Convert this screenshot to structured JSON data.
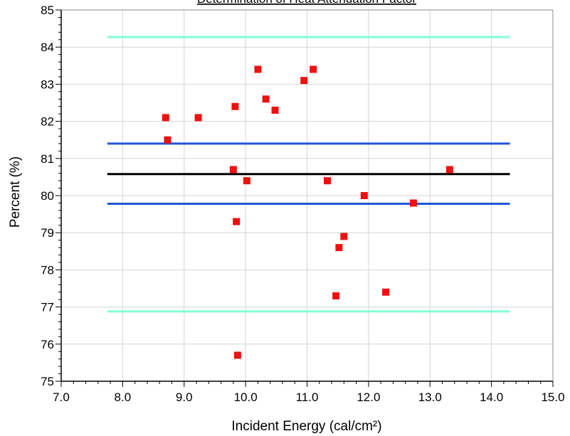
{
  "chart_data": {
    "type": "scatter",
    "title": "Determination of Heat Attenuation Factor",
    "xlabel": "Incident Energy (cal/cm²)",
    "ylabel": "Percent (%)",
    "xlim": [
      7.0,
      15.0
    ],
    "ylim": [
      75,
      85
    ],
    "grid": true,
    "x_ticks": [
      "7.0",
      "8.0",
      "9.0",
      "10.0",
      "11.0",
      "12.0",
      "13.0",
      "14.0",
      "15.0"
    ],
    "y_ticks": [
      "75",
      "76",
      "77",
      "78",
      "79",
      "80",
      "81",
      "82",
      "83",
      "84",
      "85"
    ],
    "reference_lines": [
      {
        "y": 84.27,
        "x_range": [
          7.75,
          14.3
        ],
        "color": "#7fffd4"
      },
      {
        "y": 81.4,
        "x_range": [
          7.75,
          14.3
        ],
        "color": "#1f56d6"
      },
      {
        "y": 80.58,
        "x_range": [
          7.75,
          14.3
        ],
        "color": "#000000"
      },
      {
        "y": 79.78,
        "x_range": [
          7.75,
          14.3
        ],
        "color": "#1f56d6"
      },
      {
        "y": 76.88,
        "x_range": [
          7.75,
          14.3
        ],
        "color": "#7fffd4"
      }
    ],
    "series": [
      {
        "color": "#ee1111",
        "points": [
          {
            "x": 8.7,
            "y": 82.1
          },
          {
            "x": 8.73,
            "y": 81.5
          },
          {
            "x": 9.23,
            "y": 82.1
          },
          {
            "x": 9.8,
            "y": 80.7
          },
          {
            "x": 9.83,
            "y": 82.4
          },
          {
            "x": 9.85,
            "y": 79.3
          },
          {
            "x": 9.87,
            "y": 75.7
          },
          {
            "x": 10.02,
            "y": 80.4
          },
          {
            "x": 10.2,
            "y": 83.4
          },
          {
            "x": 10.33,
            "y": 82.6
          },
          {
            "x": 10.48,
            "y": 82.3
          },
          {
            "x": 10.95,
            "y": 83.1
          },
          {
            "x": 11.1,
            "y": 83.4
          },
          {
            "x": 11.33,
            "y": 80.4
          },
          {
            "x": 11.47,
            "y": 77.3
          },
          {
            "x": 11.52,
            "y": 78.6
          },
          {
            "x": 11.6,
            "y": 78.9
          },
          {
            "x": 11.93,
            "y": 80.0
          },
          {
            "x": 12.28,
            "y": 77.4
          },
          {
            "x": 12.73,
            "y": 79.8
          },
          {
            "x": 13.32,
            "y": 80.7
          }
        ]
      }
    ]
  }
}
